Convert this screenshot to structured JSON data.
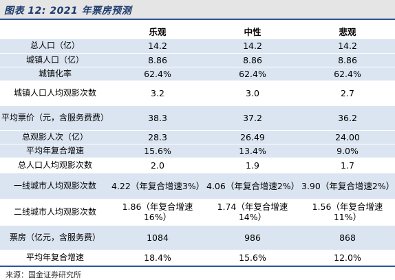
{
  "title": "图表 12:  2021 年票房预测",
  "columns": [
    "",
    "乐观",
    "中性",
    "悲观"
  ],
  "rows": [
    {
      "label": "总人口（亿）",
      "values": [
        "14.2",
        "14.2",
        "14.2"
      ]
    },
    {
      "label": "城镇人口（亿）",
      "values": [
        "8.86",
        "8.86",
        "8.86"
      ]
    },
    {
      "label": "城镇化率",
      "values": [
        "62.4%",
        "62.4%",
        "62.4%"
      ]
    },
    {
      "label": "城镇人口人均观影次数",
      "values": [
        "3.2",
        "3.0",
        "2.7"
      ]
    },
    {
      "label": "平均票价（元，含服务费费）",
      "values": [
        "38.3",
        "37.2",
        "36.2"
      ]
    },
    {
      "label": "总观影人次（亿）",
      "values": [
        "28.3",
        "26.49",
        "24.00"
      ]
    },
    {
      "label": "平均年复合增速",
      "values": [
        "15.6%",
        "13.4%",
        "9.0%"
      ]
    },
    {
      "label": "总人口人均观影次数",
      "values": [
        "2.0",
        "1.9",
        "1.7"
      ]
    },
    {
      "label": "一线城市人均观影次数",
      "values": [
        "4.22（年复合增速3%）",
        "4.06（年复合增速2%）",
        "3.90（年复合增速2%）"
      ]
    },
    {
      "label": "二线城市人均观影次数",
      "values": [
        "1.86（年复合增速16%）",
        "1.74（年复合增速14%）",
        "1.56（年复合增速11%）"
      ]
    },
    {
      "label": "票房（亿元，含服务费）",
      "values": [
        "1084",
        "986",
        "868"
      ]
    },
    {
      "label": "平均年复合增速",
      "values": [
        "18.4%",
        "15.6%",
        "12.0%"
      ]
    }
  ],
  "source": "来源：国金证券研究所",
  "colors": {
    "title_text": "#1e3c6e",
    "rule": "#2b5597",
    "band": "#dbe5f1",
    "title_bg": "#e5e5e5"
  }
}
